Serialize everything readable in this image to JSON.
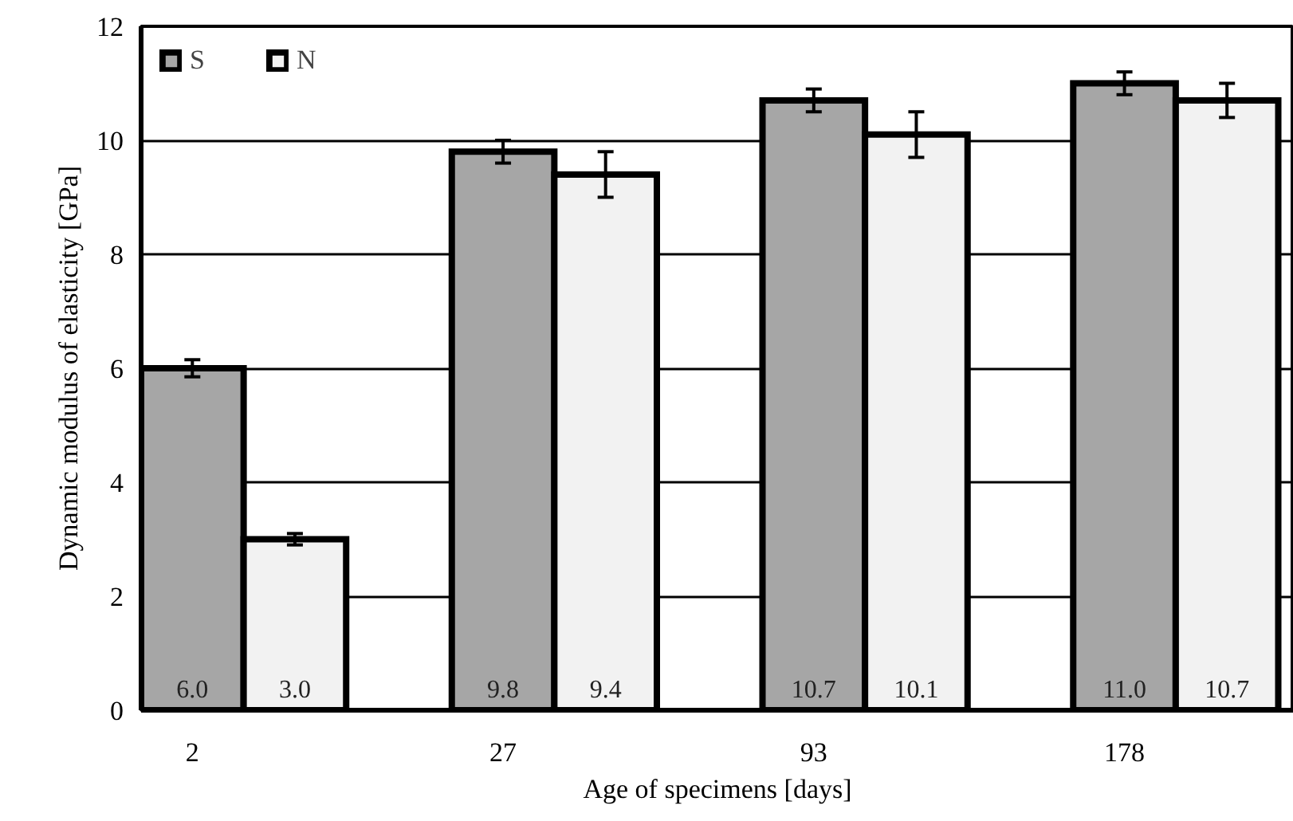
{
  "chart_data": {
    "type": "bar",
    "xlabel": "Age of specimens [days]",
    "ylabel": "Dynamic modulus of elasticity [GPa]",
    "categories": [
      "2",
      "27",
      "93",
      "178"
    ],
    "series": [
      {
        "name": "S",
        "color": "#a6a6a6",
        "values": [
          6.0,
          9.8,
          10.7,
          11.0
        ],
        "value_labels": [
          "6.0",
          "9.8",
          "10.7",
          "11.0"
        ],
        "errors": [
          0.15,
          0.2,
          0.2,
          0.2
        ]
      },
      {
        "name": "N",
        "color": "#f2f2f2",
        "values": [
          3.0,
          9.4,
          10.1,
          10.7
        ],
        "value_labels": [
          "3.0",
          "9.4",
          "10.1",
          "10.7"
        ],
        "errors": [
          0.1,
          0.4,
          0.4,
          0.3
        ]
      }
    ],
    "ylim": [
      0,
      12
    ],
    "yticks": [
      0,
      2,
      4,
      6,
      8,
      10,
      12
    ],
    "grid": "y",
    "legend": "top left"
  }
}
